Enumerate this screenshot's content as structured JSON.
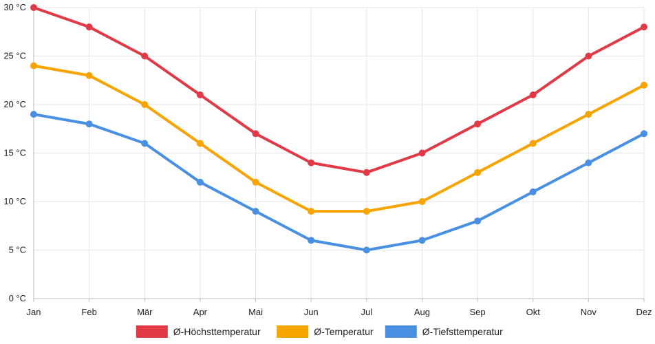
{
  "chart_data": {
    "type": "line",
    "categories": [
      "Jan",
      "Feb",
      "Mär",
      "Apr",
      "Mai",
      "Jun",
      "Jul",
      "Aug",
      "Sep",
      "Okt",
      "Nov",
      "Dez"
    ],
    "series": [
      {
        "name": "Ø-Höchsttemperatur",
        "color": "#e03a47",
        "values": [
          30,
          28,
          25,
          21,
          17,
          14,
          13,
          15,
          18,
          21,
          25,
          28
        ]
      },
      {
        "name": "Ø-Temperatur",
        "color": "#f7a400",
        "values": [
          24,
          23,
          20,
          16,
          12,
          9,
          9,
          10,
          13,
          16,
          19,
          22
        ]
      },
      {
        "name": "Ø-Tiefsttemperatur",
        "color": "#4a90e2",
        "values": [
          19,
          18,
          16,
          12,
          9,
          6,
          5,
          6,
          8,
          11,
          14,
          17
        ]
      }
    ],
    "y_ticks": [
      "0 °C",
      "5 °C",
      "10 °C",
      "15 °C",
      "20 °C",
      "25 °C",
      "30 °C"
    ],
    "ylim": [
      0,
      30
    ],
    "title": "",
    "xlabel": "",
    "ylabel": "",
    "grid": true,
    "legend": "bottom-center"
  }
}
